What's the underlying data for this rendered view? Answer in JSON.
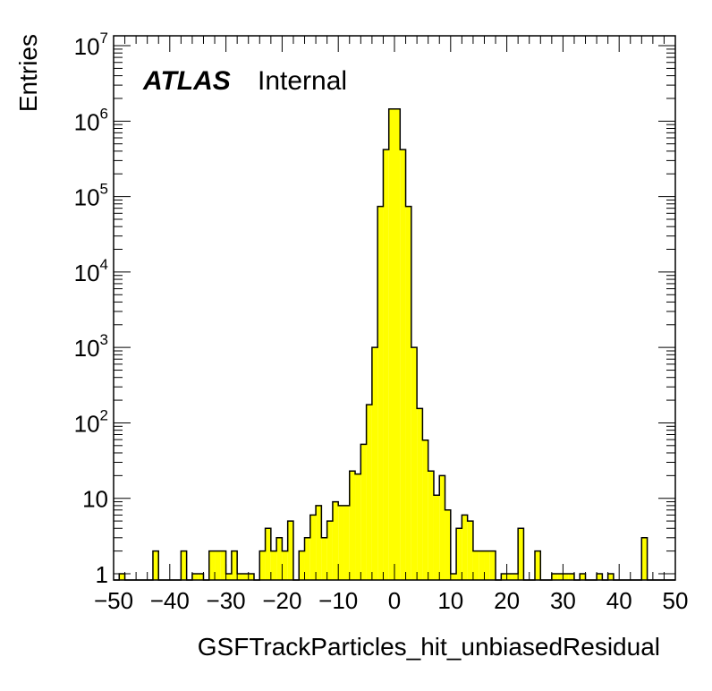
{
  "chart_data": {
    "type": "bar",
    "histogram": true,
    "title": "",
    "xlabel": "GSFTrackParticles_hit_unbiasedResidual",
    "ylabel": "Entries",
    "yscale": "log",
    "xlim": [
      -50,
      50
    ],
    "ylim_log10": [
      -0.083,
      7.131
    ],
    "bin_width": 1,
    "bin_start": -50,
    "x_ticks": [
      -50,
      -40,
      -30,
      -20,
      -10,
      0,
      10,
      20,
      30,
      40,
      50
    ],
    "x_tick_labels": [
      "−50",
      "−40",
      "−30",
      "−20",
      "−10",
      "0",
      "10",
      "20",
      "30",
      "40",
      "50"
    ],
    "y_ticks": [
      {
        "base": "1",
        "exp": ""
      },
      {
        "base": "10",
        "exp": ""
      },
      {
        "base": "10",
        "exp": "2"
      },
      {
        "base": "10",
        "exp": "3"
      },
      {
        "base": "10",
        "exp": "4"
      },
      {
        "base": "10",
        "exp": "5"
      },
      {
        "base": "10",
        "exp": "6"
      },
      {
        "base": "10",
        "exp": "7"
      }
    ],
    "values": [
      0,
      1,
      0,
      0,
      0,
      0,
      0,
      2,
      0,
      0,
      0,
      0,
      2,
      0,
      1,
      1,
      0,
      2,
      2,
      2,
      1,
      2,
      1,
      1,
      1,
      0,
      2,
      4,
      2,
      3,
      2,
      5,
      0,
      2,
      3,
      6,
      8,
      3,
      5,
      9,
      8,
      8,
      23,
      21,
      52,
      174,
      1000,
      74000,
      420000,
      1450000,
      1450000,
      420000,
      74000,
      1000,
      155,
      59,
      23,
      11,
      20,
      7,
      1,
      4,
      6,
      5,
      2,
      2,
      2,
      2,
      0,
      1,
      1,
      1,
      4,
      0,
      0,
      2,
      0,
      0,
      1,
      1,
      1,
      1,
      0,
      1,
      0,
      0,
      1,
      0,
      1,
      0,
      0,
      0,
      0,
      0,
      3,
      0,
      0,
      0,
      0,
      0
    ],
    "fill_color": "#ffff00",
    "line_color": "#000000",
    "grid": false
  },
  "label": {
    "experiment": "ATLAS",
    "status": "Internal"
  }
}
